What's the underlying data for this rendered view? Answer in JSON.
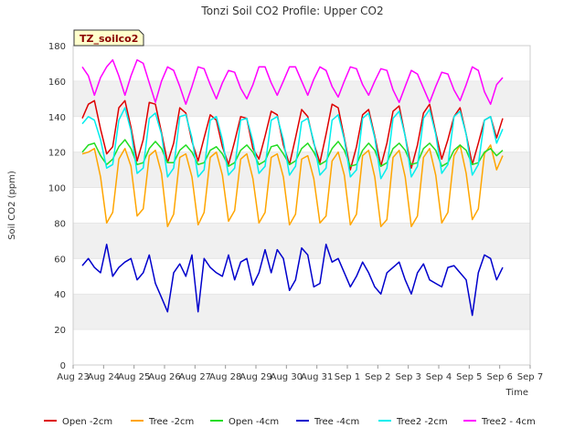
{
  "chart_data": {
    "type": "line",
    "title": "Tonzi Soil CO2 Profile: Upper CO2",
    "xlabel": "Time",
    "ylabel": "Soil CO2 (ppm)",
    "badge": "TZ_soilco2",
    "ylim": [
      0,
      180
    ],
    "yticks": [
      0,
      20,
      40,
      60,
      80,
      100,
      120,
      140,
      160,
      180
    ],
    "xlim": [
      0,
      15
    ],
    "xticks": [
      "Aug 23",
      "Aug 24",
      "Aug 25",
      "Aug 26",
      "Aug 27",
      "Aug 28",
      "Aug 29",
      "Aug 30",
      "Aug 31",
      "Sep 1",
      "Sep 2",
      "Sep 3",
      "Sep 4",
      "Sep 5",
      "Sep 6",
      "Sep 7"
    ],
    "grid": "horizontal alternating bands",
    "legend_position": "bottom",
    "x_days": [
      0.3,
      0.5,
      0.7,
      0.9,
      1.1,
      1.3,
      1.5,
      1.7,
      1.9,
      2.1,
      2.3,
      2.5,
      2.7,
      2.9,
      3.1,
      3.3,
      3.5,
      3.7,
      3.9,
      4.1,
      4.3,
      4.5,
      4.7,
      4.9,
      5.1,
      5.3,
      5.5,
      5.7,
      5.9,
      6.1,
      6.3,
      6.5,
      6.7,
      6.9,
      7.1,
      7.3,
      7.5,
      7.7,
      7.9,
      8.1,
      8.3,
      8.5,
      8.7,
      8.9,
      9.1,
      9.3,
      9.5,
      9.7,
      9.9,
      10.1,
      10.3,
      10.5,
      10.7,
      10.9,
      11.1,
      11.3,
      11.5,
      11.7,
      11.9,
      12.1,
      12.3,
      12.5,
      12.7,
      12.9,
      13.1,
      13.3,
      13.5,
      13.7,
      13.9,
      14.1
    ],
    "series": [
      {
        "name": "Open -2cm",
        "color": "#dd0000",
        "values": [
          139,
          147,
          149,
          133,
          119,
          123,
          145,
          149,
          134,
          115,
          127,
          148,
          147,
          131,
          114,
          125,
          145,
          142,
          126,
          115,
          128,
          141,
          138,
          123,
          113,
          126,
          140,
          139,
          122,
          116,
          129,
          143,
          141,
          124,
          113,
          128,
          144,
          140,
          125,
          114,
          130,
          147,
          145,
          128,
          110,
          123,
          141,
          144,
          129,
          112,
          125,
          143,
          146,
          129,
          111,
          124,
          142,
          147,
          131,
          116,
          127,
          140,
          145,
          130,
          113,
          125,
          138,
          140,
          128,
          139
        ]
      },
      {
        "name": "Tree -2cm",
        "color": "#ffa500",
        "values": [
          119,
          120,
          122,
          106,
          80,
          86,
          116,
          122,
          112,
          84,
          88,
          118,
          121,
          108,
          78,
          85,
          117,
          119,
          106,
          79,
          86,
          117,
          120,
          107,
          81,
          87,
          116,
          119,
          105,
          80,
          86,
          117,
          119,
          106,
          79,
          85,
          116,
          118,
          105,
          80,
          84,
          115,
          120,
          107,
          79,
          85,
          118,
          121,
          106,
          78,
          82,
          117,
          121,
          106,
          78,
          84,
          117,
          122,
          107,
          80,
          86,
          118,
          124,
          108,
          82,
          88,
          119,
          124,
          110,
          118
        ]
      },
      {
        "name": "Open -4cm",
        "color": "#22dd22",
        "values": [
          120,
          124,
          125,
          118,
          113,
          116,
          123,
          127,
          122,
          113,
          114,
          122,
          126,
          122,
          114,
          114,
          121,
          124,
          120,
          113,
          114,
          121,
          123,
          119,
          112,
          114,
          121,
          124,
          120,
          113,
          115,
          123,
          124,
          119,
          113,
          115,
          122,
          125,
          120,
          113,
          115,
          122,
          126,
          121,
          112,
          113,
          121,
          125,
          121,
          112,
          114,
          122,
          125,
          121,
          113,
          114,
          122,
          125,
          121,
          112,
          114,
          121,
          124,
          121,
          113,
          114,
          120,
          122,
          118,
          121
        ]
      },
      {
        "name": "Tree -4cm",
        "color": "#0000cc",
        "values": [
          56,
          60,
          55,
          52,
          68,
          50,
          55,
          58,
          60,
          48,
          52,
          62,
          46,
          38,
          30,
          52,
          57,
          50,
          62,
          30,
          60,
          55,
          52,
          50,
          62,
          48,
          58,
          60,
          45,
          52,
          65,
          52,
          65,
          60,
          42,
          48,
          66,
          62,
          44,
          46,
          68,
          58,
          60,
          52,
          44,
          50,
          58,
          52,
          44,
          40,
          52,
          55,
          58,
          48,
          40,
          52,
          57,
          48,
          46,
          44,
          55,
          56,
          52,
          48,
          28,
          52,
          62,
          60,
          48,
          55
        ]
      },
      {
        "name": "Tree2 -2cm",
        "color": "#00eeee",
        "values": [
          136,
          140,
          138,
          127,
          111,
          113,
          138,
          145,
          132,
          108,
          111,
          139,
          142,
          130,
          106,
          111,
          140,
          141,
          128,
          106,
          110,
          138,
          140,
          127,
          107,
          111,
          138,
          139,
          126,
          108,
          112,
          138,
          140,
          127,
          107,
          112,
          137,
          139,
          126,
          107,
          111,
          138,
          141,
          127,
          106,
          110,
          139,
          142,
          128,
          105,
          111,
          139,
          143,
          129,
          106,
          112,
          139,
          144,
          130,
          108,
          113,
          140,
          143,
          130,
          107,
          113,
          138,
          140,
          125,
          133
        ]
      },
      {
        "name": "Tree2 - 4cm",
        "color": "#ff00ff",
        "values": [
          168,
          163,
          152,
          162,
          168,
          172,
          163,
          152,
          163,
          172,
          170,
          159,
          148,
          160,
          168,
          166,
          157,
          147,
          157,
          168,
          167,
          158,
          150,
          159,
          166,
          165,
          156,
          150,
          158,
          168,
          168,
          159,
          152,
          160,
          168,
          168,
          160,
          152,
          161,
          168,
          166,
          157,
          151,
          160,
          168,
          167,
          158,
          152,
          160,
          167,
          166,
          155,
          148,
          157,
          166,
          164,
          156,
          148,
          157,
          165,
          164,
          155,
          149,
          158,
          168,
          166,
          154,
          147,
          158,
          162
        ]
      }
    ]
  }
}
